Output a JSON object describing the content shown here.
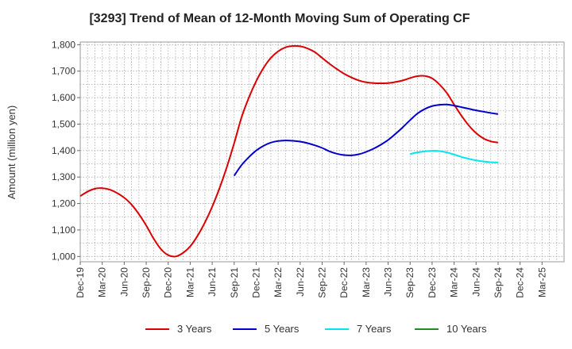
{
  "chart_data": {
    "type": "line",
    "title": "[3293]  Trend of Mean of 12-Month Moving Sum of Operating CF",
    "xlabel": "",
    "ylabel": "Amount (million yen)",
    "ylim": [
      980,
      1810
    ],
    "yticks": [
      1000,
      1100,
      1200,
      1300,
      1400,
      1500,
      1600,
      1700,
      1800
    ],
    "ytick_labels": [
      "1,000",
      "1,100",
      "1,200",
      "1,300",
      "1,400",
      "1,500",
      "1,600",
      "1,700",
      "1,800"
    ],
    "xlim": [
      0,
      66
    ],
    "xtick_labels": [
      "Dec-19",
      "Mar-20",
      "Jun-20",
      "Sep-20",
      "Dec-20",
      "Mar-21",
      "Jun-21",
      "Sep-21",
      "Dec-21",
      "Mar-22",
      "Jun-22",
      "Sep-22",
      "Dec-22",
      "Mar-23",
      "Jun-23",
      "Sep-23",
      "Dec-23",
      "Mar-24",
      "Jun-24",
      "Sep-24",
      "Dec-24",
      "Mar-25"
    ],
    "grid": true,
    "legend_position": "bottom",
    "series": [
      {
        "name": "3 Years",
        "color": "#dd0000",
        "points": [
          [
            0,
            1228
          ],
          [
            1,
            1245
          ],
          [
            2,
            1256
          ],
          [
            3,
            1258
          ],
          [
            4,
            1253
          ],
          [
            5,
            1240
          ],
          [
            6,
            1222
          ],
          [
            7,
            1196
          ],
          [
            8,
            1160
          ],
          [
            9,
            1117
          ],
          [
            10,
            1068
          ],
          [
            11,
            1028
          ],
          [
            12,
            1005
          ],
          [
            13,
            1000
          ],
          [
            14,
            1013
          ],
          [
            15,
            1038
          ],
          [
            16,
            1078
          ],
          [
            17,
            1128
          ],
          [
            18,
            1188
          ],
          [
            19,
            1258
          ],
          [
            20,
            1338
          ],
          [
            21,
            1428
          ],
          [
            22,
            1525
          ],
          [
            23,
            1600
          ],
          [
            24,
            1662
          ],
          [
            25,
            1712
          ],
          [
            26,
            1750
          ],
          [
            27,
            1775
          ],
          [
            28,
            1790
          ],
          [
            29,
            1795
          ],
          [
            30,
            1794
          ],
          [
            31,
            1786
          ],
          [
            32,
            1772
          ],
          [
            33,
            1750
          ],
          [
            34,
            1728
          ],
          [
            35,
            1708
          ],
          [
            36,
            1690
          ],
          [
            37,
            1676
          ],
          [
            38,
            1665
          ],
          [
            39,
            1658
          ],
          [
            40,
            1655
          ],
          [
            41,
            1654
          ],
          [
            42,
            1655
          ],
          [
            43,
            1659
          ],
          [
            44,
            1665
          ],
          [
            45,
            1674
          ],
          [
            46,
            1681
          ],
          [
            47,
            1682
          ],
          [
            48,
            1673
          ],
          [
            49,
            1650
          ],
          [
            50,
            1618
          ],
          [
            51,
            1574
          ],
          [
            52,
            1532
          ],
          [
            53,
            1495
          ],
          [
            54,
            1466
          ],
          [
            55,
            1446
          ],
          [
            56,
            1435
          ],
          [
            57,
            1430
          ]
        ]
      },
      {
        "name": "5 Years",
        "color": "#0000cc",
        "points": [
          [
            21,
            1305
          ],
          [
            22,
            1345
          ],
          [
            23,
            1375
          ],
          [
            24,
            1400
          ],
          [
            25,
            1418
          ],
          [
            26,
            1430
          ],
          [
            27,
            1436
          ],
          [
            28,
            1438
          ],
          [
            29,
            1437
          ],
          [
            30,
            1434
          ],
          [
            31,
            1428
          ],
          [
            32,
            1420
          ],
          [
            33,
            1410
          ],
          [
            34,
            1397
          ],
          [
            35,
            1388
          ],
          [
            36,
            1383
          ],
          [
            37,
            1382
          ],
          [
            38,
            1386
          ],
          [
            39,
            1395
          ],
          [
            40,
            1407
          ],
          [
            41,
            1422
          ],
          [
            42,
            1440
          ],
          [
            43,
            1463
          ],
          [
            44,
            1488
          ],
          [
            45,
            1515
          ],
          [
            46,
            1540
          ],
          [
            47,
            1557
          ],
          [
            48,
            1568
          ],
          [
            49,
            1573
          ],
          [
            50,
            1574
          ],
          [
            51,
            1570
          ],
          [
            52,
            1564
          ],
          [
            53,
            1558
          ],
          [
            54,
            1552
          ],
          [
            55,
            1547
          ],
          [
            56,
            1542
          ],
          [
            57,
            1538
          ]
        ]
      },
      {
        "name": "7 Years",
        "color": "#00e5ee",
        "points": [
          [
            45,
            1387
          ],
          [
            46,
            1393
          ],
          [
            47,
            1397
          ],
          [
            48,
            1399
          ],
          [
            49,
            1398
          ],
          [
            50,
            1393
          ],
          [
            51,
            1385
          ],
          [
            52,
            1376
          ],
          [
            53,
            1369
          ],
          [
            54,
            1363
          ],
          [
            55,
            1359
          ],
          [
            56,
            1356
          ],
          [
            57,
            1355
          ]
        ]
      },
      {
        "name": "10 Years",
        "color": "#228b22",
        "points": []
      }
    ]
  }
}
